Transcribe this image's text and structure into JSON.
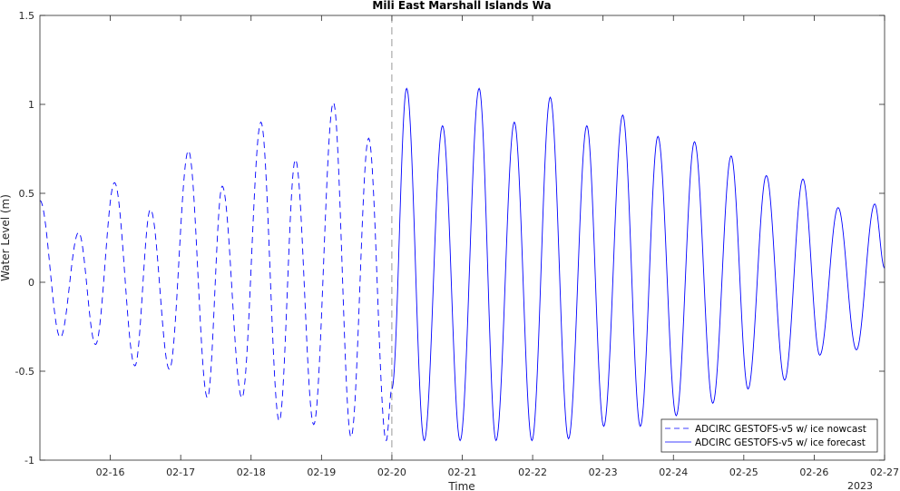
{
  "chart_data": {
    "type": "line",
    "title": "Mili East Marshall Islands Wa",
    "xlabel": "Time",
    "ylabel": "Water Level (m)",
    "xlim_days": [
      15.0,
      27.0
    ],
    "ylim": [
      -1,
      1.5
    ],
    "yticks": [
      -1,
      -0.5,
      0,
      0.5,
      1,
      1.5
    ],
    "ytick_labels": [
      "-1",
      "-0.5",
      "0",
      "0.5",
      "1",
      "1.5"
    ],
    "xticks": [
      16,
      17,
      18,
      19,
      20,
      21,
      22,
      23,
      24,
      25,
      26,
      27
    ],
    "xtick_labels": [
      "02-16",
      "02-17",
      "02-18",
      "02-19",
      "02-20",
      "02-21",
      "02-22",
      "02-23",
      "02-24",
      "02-25",
      "02-26",
      "02-27"
    ],
    "year_label": "2023",
    "nowcast_end": 20.0,
    "series": [
      {
        "name": "ADCIRC GESTOFS-v5 w/ ice nowcast",
        "color": "#0000ff",
        "style": "dashed",
        "extrema": [
          [
            15.0,
            0.46
          ],
          [
            15.29,
            -0.31
          ],
          [
            15.55,
            0.28
          ],
          [
            15.79,
            -0.35
          ],
          [
            16.06,
            0.56
          ],
          [
            16.35,
            -0.47
          ],
          [
            16.57,
            0.41
          ],
          [
            16.84,
            -0.49
          ],
          [
            17.11,
            0.74
          ],
          [
            17.38,
            -0.65
          ],
          [
            17.59,
            0.54
          ],
          [
            17.87,
            -0.65
          ],
          [
            18.14,
            0.9
          ],
          [
            18.4,
            -0.78
          ],
          [
            18.63,
            0.69
          ],
          [
            18.89,
            -0.8
          ],
          [
            19.17,
            1.01
          ],
          [
            19.42,
            -0.87
          ],
          [
            19.67,
            0.81
          ],
          [
            19.92,
            -0.89
          ],
          [
            20.0,
            -0.6
          ]
        ]
      },
      {
        "name": "ADCIRC GESTOFS-v5 w/ ice forecast",
        "color": "#0000ff",
        "style": "solid",
        "extrema": [
          [
            20.0,
            -0.6
          ],
          [
            20.21,
            1.09
          ],
          [
            20.46,
            -0.89
          ],
          [
            20.72,
            0.88
          ],
          [
            20.97,
            -0.89
          ],
          [
            21.24,
            1.09
          ],
          [
            21.48,
            -0.89
          ],
          [
            21.74,
            0.9
          ],
          [
            21.99,
            -0.89
          ],
          [
            22.25,
            1.04
          ],
          [
            22.51,
            -0.88
          ],
          [
            22.77,
            0.88
          ],
          [
            23.01,
            -0.81
          ],
          [
            23.28,
            0.94
          ],
          [
            23.53,
            -0.81
          ],
          [
            23.78,
            0.82
          ],
          [
            24.04,
            -0.75
          ],
          [
            24.3,
            0.79
          ],
          [
            24.56,
            -0.68
          ],
          [
            24.82,
            0.71
          ],
          [
            25.06,
            -0.6
          ],
          [
            25.32,
            0.6
          ],
          [
            25.58,
            -0.55
          ],
          [
            25.84,
            0.58
          ],
          [
            26.08,
            -0.41
          ],
          [
            26.34,
            0.42
          ],
          [
            26.6,
            -0.38
          ],
          [
            26.86,
            0.44
          ],
          [
            27.0,
            0.08
          ]
        ]
      }
    ],
    "legend_position": "bottom-right",
    "grid": false
  }
}
